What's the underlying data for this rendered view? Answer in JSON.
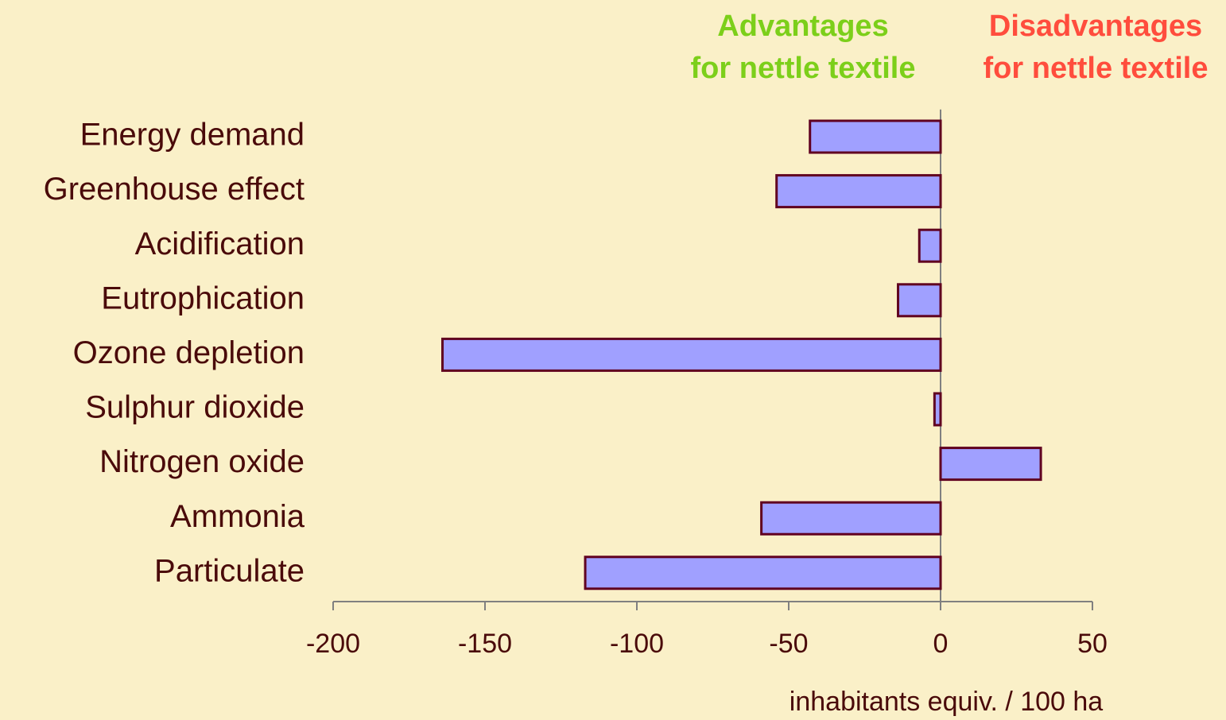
{
  "chart_data": {
    "type": "hbar",
    "categories": [
      "Energy demand",
      "Greenhouse effect",
      "Acidification",
      "Eutrophication",
      "Ozone depletion",
      "Sulphur dioxide",
      "Nitrogen oxide",
      "Ammonia",
      "Particulate"
    ],
    "values": [
      -43,
      -54,
      -7,
      -14,
      -164,
      -2,
      33,
      -59,
      -117
    ],
    "color": "#a0a0ff",
    "edge_color": "#600020",
    "xlim": [
      -200,
      50
    ],
    "xticks": [
      -200,
      -150,
      -100,
      -50,
      0,
      50
    ],
    "x_label": "inhabitants equiv. / 100 ha",
    "annotations": [
      {
        "lines": [
          "Advantages",
          "for nettle textile"
        ],
        "color": "#7ccf1a"
      },
      {
        "lines": [
          "Disadvantages",
          "for nettle textile"
        ],
        "color": "#ff4d3d"
      }
    ]
  }
}
